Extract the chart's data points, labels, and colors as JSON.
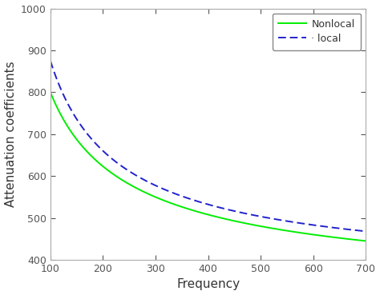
{
  "title": "",
  "xlabel": "Frequency",
  "ylabel": "Attenuation coefficients",
  "xlim": [
    100,
    700
  ],
  "ylim": [
    400,
    1000
  ],
  "xticks": [
    100,
    200,
    300,
    400,
    500,
    600,
    700
  ],
  "yticks": [
    400,
    500,
    600,
    700,
    800,
    900,
    1000
  ],
  "nonlocal_color": "#00ee00",
  "local_color": "#2222cc",
  "nonlocal_label": "Nonlocal",
  "local_label": "local",
  "nonlocal_n": -0.62,
  "nonlocal_x1": 100,
  "nonlocal_y1": 800,
  "nonlocal_x2": 700,
  "nonlocal_y2": 445,
  "local_n": -0.75,
  "local_x1": 100,
  "local_y1": 875,
  "local_x2": 700,
  "local_y2": 468,
  "x_start": 100,
  "x_end": 700,
  "spine_color": "#aaaaaa",
  "tick_color": "#555555",
  "label_color": "#333333",
  "background_color": "#ffffff",
  "xlabel_fontsize": 11,
  "ylabel_fontsize": 11,
  "tick_fontsize": 9,
  "legend_fontsize": 9,
  "linewidth": 1.4,
  "legend_dot_space": "· "
}
